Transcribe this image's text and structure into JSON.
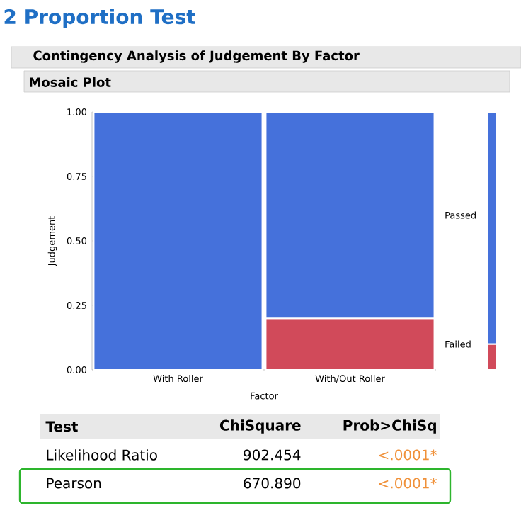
{
  "chart_data": {
    "type": "bar",
    "stacked": true,
    "title": "2 Proportion Test",
    "subtitle": "Contingency Analysis of Judgement By Factor",
    "xlabel": "Factor",
    "ylabel": "Judgement",
    "categories": [
      "With Roller",
      "With/Out Roller",
      null
    ],
    "series": [
      {
        "name": "Failed",
        "color": "#d14a5a",
        "values": [
          0,
          0.2,
          0.1
        ]
      },
      {
        "name": "Passed",
        "color": "#4571db",
        "values": [
          1,
          0.8,
          0.9
        ]
      }
    ],
    "ylim": [
      0,
      1
    ],
    "yticks": [
      {
        "value": 0,
        "label": "0.00"
      },
      {
        "value": 0.25,
        "label": "0.25"
      },
      {
        "value": 0.5,
        "label": "0.50"
      },
      {
        "value": 0.75,
        "label": "0.75"
      },
      {
        "value": 1,
        "label": "1.00"
      }
    ],
    "annotations": [
      "Mosaic Plot",
      "Test",
      "ChiSquare",
      "Prob>ChiSq",
      "Likelihood Ratio",
      "902.454",
      "<.0001*",
      "Pearson",
      "670.890",
      "<.0001*"
    ]
  }
}
